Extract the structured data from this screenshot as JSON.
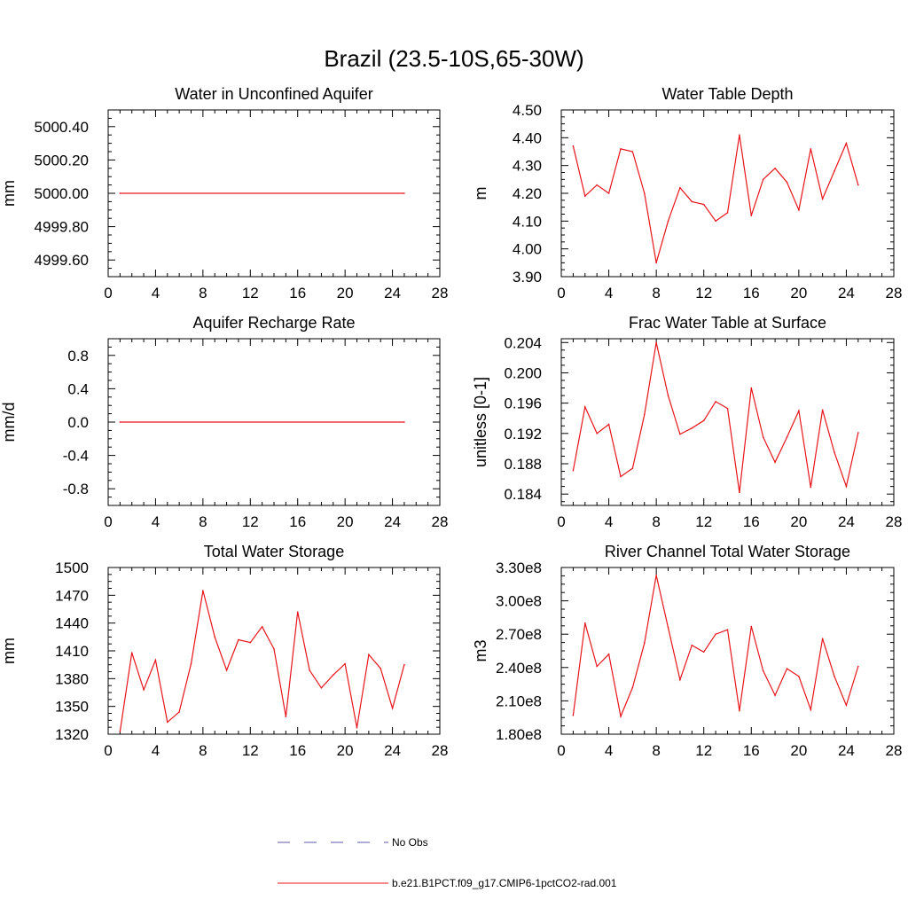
{
  "title": "Brazil (23.5-10S,65-30W)",
  "legend": {
    "obs_label": "No Obs",
    "obs_color": "#5a5aa8",
    "model_label": "b.e21.B1PCT.f09_g17.CMIP6-1pctCO2-rad.001",
    "model_color": "#e8141c"
  },
  "chart_data": [
    {
      "type": "line",
      "title": "Water in Unconfined Aquifer",
      "ylabel": "mm",
      "xlim": [
        0,
        28
      ],
      "xticks": [
        0,
        4,
        8,
        12,
        16,
        20,
        24,
        28
      ],
      "ylim": [
        4999.5,
        5000.5
      ],
      "yticks": [
        4999.6,
        4999.8,
        5000.0,
        5000.2,
        5000.4
      ],
      "ytick_labels": [
        "4999.60",
        "4999.80",
        "5000.00",
        "5000.20",
        "5000.40"
      ],
      "series": [
        {
          "name": "b.e21.B1PCT.f09_g17.CMIP6-1pctCO2-rad.001",
          "x": [
            1,
            25
          ],
          "values": [
            5000.0,
            5000.0
          ]
        }
      ]
    },
    {
      "type": "line",
      "title": "Water Table Depth",
      "ylabel": "m",
      "xlim": [
        0,
        28
      ],
      "xticks": [
        0,
        4,
        8,
        12,
        16,
        20,
        24,
        28
      ],
      "ylim": [
        3.9,
        4.5
      ],
      "yticks": [
        3.9,
        4.0,
        4.1,
        4.2,
        4.3,
        4.4,
        4.5
      ],
      "ytick_labels": [
        "3.90",
        "4.00",
        "4.10",
        "4.20",
        "4.30",
        "4.40",
        "4.50"
      ],
      "series": [
        {
          "name": "b.e21.B1PCT.f09_g17.CMIP6-1pctCO2-rad.001",
          "x": [
            1,
            2,
            3,
            4,
            5,
            6,
            7,
            8,
            9,
            10,
            11,
            12,
            13,
            14,
            15,
            16,
            17,
            18,
            19,
            20,
            21,
            22,
            23,
            24,
            25
          ],
          "values": [
            4.37,
            4.19,
            4.23,
            4.2,
            4.36,
            4.35,
            4.2,
            3.95,
            4.1,
            4.22,
            4.17,
            4.16,
            4.1,
            4.13,
            4.41,
            4.12,
            4.25,
            4.29,
            4.24,
            4.14,
            4.36,
            4.18,
            4.28,
            4.38,
            4.23
          ]
        }
      ]
    },
    {
      "type": "line",
      "title": "Aquifer Recharge Rate",
      "ylabel": "mm/d",
      "xlim": [
        0,
        28
      ],
      "xticks": [
        0,
        4,
        8,
        12,
        16,
        20,
        24,
        28
      ],
      "ylim": [
        -1.0,
        1.0
      ],
      "yticks": [
        -0.8,
        -0.4,
        0.0,
        0.4,
        0.8
      ],
      "ytick_labels": [
        "-0.8",
        "-0.4",
        "0.0",
        "0.4",
        "0.8"
      ],
      "series": [
        {
          "name": "b.e21.B1PCT.f09_g17.CMIP6-1pctCO2-rad.001",
          "x": [
            1,
            25
          ],
          "values": [
            0.0,
            0.0
          ]
        }
      ]
    },
    {
      "type": "line",
      "title": "Frac Water Table at Surface",
      "ylabel": "unitless [0-1]",
      "xlim": [
        0,
        28
      ],
      "xticks": [
        0,
        4,
        8,
        12,
        16,
        20,
        24,
        28
      ],
      "ylim": [
        0.1825,
        0.2045
      ],
      "yticks": [
        0.184,
        0.188,
        0.192,
        0.196,
        0.2,
        0.204
      ],
      "ytick_labels": [
        "0.184",
        "0.188",
        "0.192",
        "0.196",
        "0.200",
        "0.204"
      ],
      "series": [
        {
          "name": "b.e21.B1PCT.f09_g17.CMIP6-1pctCO2-rad.001",
          "x": [
            1,
            2,
            3,
            4,
            5,
            6,
            7,
            8,
            9,
            10,
            11,
            12,
            13,
            14,
            15,
            16,
            17,
            18,
            19,
            20,
            21,
            22,
            23,
            24,
            25
          ],
          "values": [
            0.1871,
            0.1955,
            0.192,
            0.1932,
            0.1863,
            0.1874,
            0.1945,
            0.204,
            0.197,
            0.1919,
            0.1927,
            0.1937,
            0.1962,
            0.1953,
            0.1842,
            0.198,
            0.1915,
            0.1882,
            0.1915,
            0.195,
            0.1849,
            0.1951,
            0.1895,
            0.185,
            0.1921
          ]
        }
      ]
    },
    {
      "type": "line",
      "title": "Total Water Storage",
      "ylabel": "mm",
      "xlim": [
        0,
        28
      ],
      "xticks": [
        0,
        4,
        8,
        12,
        16,
        20,
        24,
        28
      ],
      "ylim": [
        1320,
        1500
      ],
      "yticks": [
        1320,
        1350,
        1380,
        1410,
        1440,
        1470,
        1500
      ],
      "ytick_labels": [
        "1320",
        "1350",
        "1380",
        "1410",
        "1440",
        "1470",
        "1500"
      ],
      "series": [
        {
          "name": "b.e21.B1PCT.f09_g17.CMIP6-1pctCO2-rad.001",
          "x": [
            1,
            2,
            3,
            4,
            5,
            6,
            7,
            8,
            9,
            10,
            11,
            12,
            13,
            14,
            15,
            16,
            17,
            18,
            19,
            20,
            21,
            22,
            23,
            24,
            25
          ],
          "values": [
            1323,
            1408,
            1368,
            1400,
            1333,
            1344,
            1396,
            1475,
            1425,
            1389,
            1422,
            1419,
            1436,
            1412,
            1339,
            1452,
            1389,
            1370,
            1384,
            1396,
            1327,
            1406,
            1391,
            1348,
            1395
          ]
        }
      ]
    },
    {
      "type": "line",
      "title": "River Channel Total Water Storage",
      "ylabel": "m3",
      "xlim": [
        0,
        28
      ],
      "xticks": [
        0,
        4,
        8,
        12,
        16,
        20,
        24,
        28
      ],
      "ylim": [
        180000000,
        330000000
      ],
      "yticks": [
        180000000,
        210000000,
        240000000,
        270000000,
        300000000,
        330000000
      ],
      "ytick_labels": [
        "1.80e8",
        "2.10e8",
        "2.40e8",
        "2.70e8",
        "3.00e8",
        "3.30e8"
      ],
      "series": [
        {
          "name": "b.e21.B1PCT.f09_g17.CMIP6-1pctCO2-rad.001",
          "x": [
            1,
            2,
            3,
            4,
            5,
            6,
            7,
            8,
            9,
            10,
            11,
            12,
            13,
            14,
            15,
            16,
            17,
            18,
            19,
            20,
            21,
            22,
            23,
            24,
            25
          ],
          "values": [
            197000000,
            280000000,
            241000000,
            252000000,
            196000000,
            222000000,
            262000000,
            323000000,
            276000000,
            229000000,
            260000000,
            254000000,
            270000000,
            274000000,
            201000000,
            277000000,
            237000000,
            215000000,
            239000000,
            232000000,
            202000000,
            266000000,
            232000000,
            206000000,
            241000000
          ]
        }
      ]
    }
  ]
}
